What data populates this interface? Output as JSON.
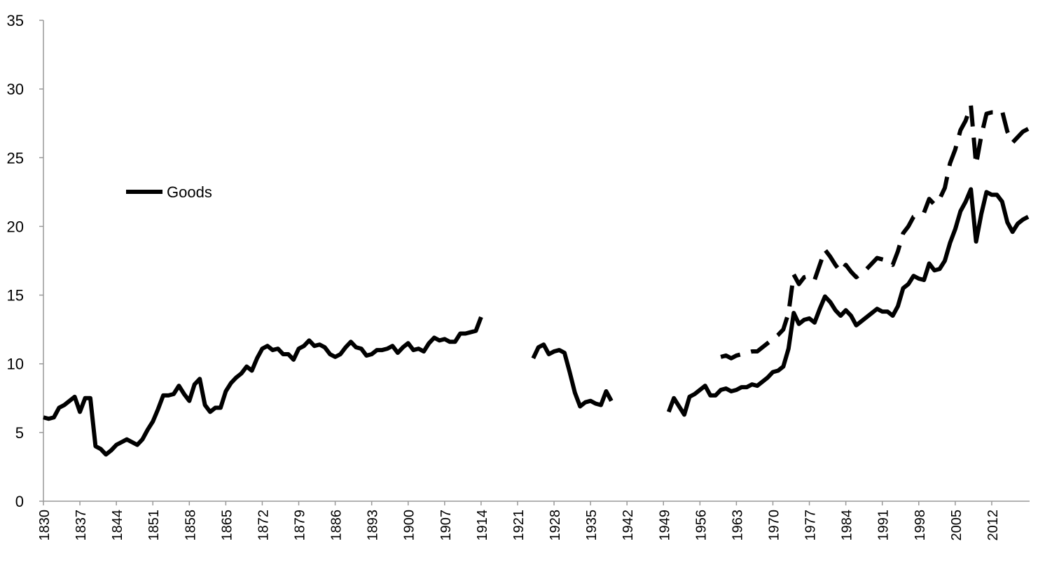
{
  "chart_data": {
    "type": "line",
    "x": [
      1830,
      1831,
      1832,
      1833,
      1834,
      1835,
      1836,
      1837,
      1838,
      1839,
      1840,
      1841,
      1842,
      1843,
      1844,
      1845,
      1846,
      1847,
      1848,
      1849,
      1850,
      1851,
      1852,
      1853,
      1854,
      1855,
      1856,
      1857,
      1858,
      1859,
      1860,
      1861,
      1862,
      1863,
      1864,
      1865,
      1866,
      1867,
      1868,
      1869,
      1870,
      1871,
      1872,
      1873,
      1874,
      1875,
      1876,
      1877,
      1878,
      1879,
      1880,
      1881,
      1882,
      1883,
      1884,
      1885,
      1886,
      1887,
      1888,
      1889,
      1890,
      1891,
      1892,
      1893,
      1894,
      1895,
      1896,
      1897,
      1898,
      1899,
      1900,
      1901,
      1902,
      1903,
      1904,
      1905,
      1906,
      1907,
      1908,
      1909,
      1910,
      1911,
      1912,
      1913,
      1914,
      1915,
      1916,
      1917,
      1918,
      1919,
      1920,
      1921,
      1922,
      1923,
      1924,
      1925,
      1926,
      1927,
      1928,
      1929,
      1930,
      1931,
      1932,
      1933,
      1934,
      1935,
      1936,
      1937,
      1938,
      1939,
      1940,
      1941,
      1942,
      1943,
      1944,
      1945,
      1946,
      1947,
      1948,
      1949,
      1950,
      1951,
      1952,
      1953,
      1954,
      1955,
      1956,
      1957,
      1958,
      1959,
      1960,
      1961,
      1962,
      1963,
      1964,
      1965,
      1966,
      1967,
      1968,
      1969,
      1970,
      1971,
      1972,
      1973,
      1974,
      1975,
      1976,
      1977,
      1978,
      1979,
      1980,
      1981,
      1982,
      1983,
      1984,
      1985,
      1986,
      1987,
      1988,
      1989,
      1990,
      1991,
      1992,
      1993,
      1994,
      1995,
      1996,
      1997,
      1998,
      1999,
      2000,
      2001,
      2002,
      2003,
      2004,
      2005,
      2006,
      2007,
      2008,
      2009,
      2010,
      2011,
      2012,
      2013,
      2014,
      2015,
      2016,
      2017,
      2018,
      2019
    ],
    "series": [
      {
        "name": "Goods",
        "color": "#000000",
        "dashed": false,
        "values": [
          6.1,
          6.0,
          6.1,
          6.8,
          7.0,
          7.3,
          7.6,
          6.5,
          7.5,
          7.5,
          4.0,
          3.8,
          3.4,
          3.7,
          4.1,
          4.3,
          4.5,
          4.3,
          4.1,
          4.5,
          5.2,
          5.8,
          6.7,
          7.7,
          7.7,
          7.8,
          8.4,
          7.8,
          7.3,
          8.5,
          8.9,
          7.0,
          6.5,
          6.8,
          6.8,
          8.0,
          8.6,
          9.0,
          9.3,
          9.8,
          9.5,
          10.4,
          11.1,
          11.3,
          11.0,
          11.1,
          10.7,
          10.7,
          10.3,
          11.1,
          11.3,
          11.7,
          11.3,
          11.4,
          11.2,
          10.7,
          10.5,
          10.7,
          11.2,
          11.6,
          11.2,
          11.1,
          10.6,
          10.7,
          11.0,
          11.0,
          11.1,
          11.3,
          10.8,
          11.2,
          11.5,
          11.0,
          11.1,
          10.9,
          11.5,
          11.9,
          11.7,
          11.8,
          11.6,
          11.6,
          12.2,
          12.2,
          12.3,
          12.4,
          13.4,
          null,
          null,
          null,
          null,
          null,
          null,
          null,
          null,
          null,
          10.4,
          11.2,
          11.4,
          10.7,
          10.9,
          11.0,
          10.8,
          9.4,
          7.9,
          6.9,
          7.2,
          7.3,
          7.1,
          7.0,
          8.0,
          7.3,
          null,
          null,
          null,
          null,
          null,
          null,
          null,
          null,
          null,
          null,
          6.5,
          7.5,
          6.9,
          6.3,
          7.6,
          7.8,
          8.1,
          8.4,
          7.7,
          7.7,
          8.1,
          8.2,
          8.0,
          8.1,
          8.3,
          8.3,
          8.5,
          8.4,
          8.7,
          9.0,
          9.4,
          9.5,
          9.8,
          11.1,
          13.7,
          12.9,
          13.2,
          13.3,
          13.0,
          14.0,
          14.9,
          14.5,
          13.9,
          13.5,
          13.9,
          13.5,
          12.8,
          13.1,
          13.4,
          13.7,
          14.0,
          13.8,
          13.8,
          13.5,
          14.2,
          15.5,
          15.8,
          16.4,
          16.2,
          16.1,
          17.3,
          16.8,
          16.9,
          17.5,
          18.8,
          19.8,
          21.1,
          21.8,
          22.7,
          18.9,
          20.9,
          22.5,
          22.3,
          22.3,
          21.8,
          20.3,
          19.6,
          20.2,
          20.5,
          20.7
        ]
      },
      {
        "color": "#000000",
        "dashed": true,
        "values": [
          null,
          null,
          null,
          null,
          null,
          null,
          null,
          null,
          null,
          null,
          null,
          null,
          null,
          null,
          null,
          null,
          null,
          null,
          null,
          null,
          null,
          null,
          null,
          null,
          null,
          null,
          null,
          null,
          null,
          null,
          null,
          null,
          null,
          null,
          null,
          null,
          null,
          null,
          null,
          null,
          null,
          null,
          null,
          null,
          null,
          null,
          null,
          null,
          null,
          null,
          null,
          null,
          null,
          null,
          null,
          null,
          null,
          null,
          null,
          null,
          null,
          null,
          null,
          null,
          null,
          null,
          null,
          null,
          null,
          null,
          null,
          null,
          null,
          null,
          null,
          null,
          null,
          null,
          null,
          null,
          null,
          null,
          null,
          null,
          null,
          null,
          null,
          null,
          null,
          null,
          null,
          null,
          null,
          null,
          null,
          null,
          null,
          null,
          null,
          null,
          null,
          null,
          null,
          null,
          null,
          null,
          null,
          null,
          null,
          null,
          null,
          null,
          null,
          null,
          null,
          null,
          null,
          null,
          null,
          null,
          null,
          null,
          null,
          null,
          null,
          null,
          null,
          null,
          null,
          null,
          10.5,
          10.6,
          10.4,
          10.6,
          10.7,
          10.8,
          10.9,
          10.9,
          11.2,
          11.5,
          11.8,
          12.1,
          12.5,
          13.7,
          16.5,
          15.8,
          16.3,
          16.4,
          16.1,
          17.2,
          18.3,
          17.8,
          17.2,
          16.7,
          17.2,
          16.7,
          16.3,
          16.6,
          16.9,
          17.3,
          17.7,
          17.6,
          17.5,
          17.2,
          18.2,
          19.5,
          20.0,
          20.7,
          20.9,
          21.0,
          22.0,
          21.6,
          22.0,
          22.8,
          24.6,
          25.6,
          27.0,
          27.7,
          28.8,
          24.5,
          26.6,
          28.2,
          28.3,
          28.3,
          28.4,
          26.9,
          26.1,
          26.5,
          26.9,
          27.1
        ]
      }
    ],
    "xlim": [
      1830,
      2019
    ],
    "xticks": [
      1830,
      1837,
      1844,
      1851,
      1858,
      1865,
      1872,
      1879,
      1886,
      1893,
      1900,
      1907,
      1914,
      1921,
      1928,
      1935,
      1942,
      1949,
      1956,
      1963,
      1970,
      1977,
      1984,
      1991,
      1998,
      2005,
      2012
    ],
    "ylim": [
      0,
      35
    ],
    "yticks": [
      0,
      5,
      10,
      15,
      20,
      25,
      30,
      35
    ],
    "grid": false,
    "legend": "left"
  }
}
